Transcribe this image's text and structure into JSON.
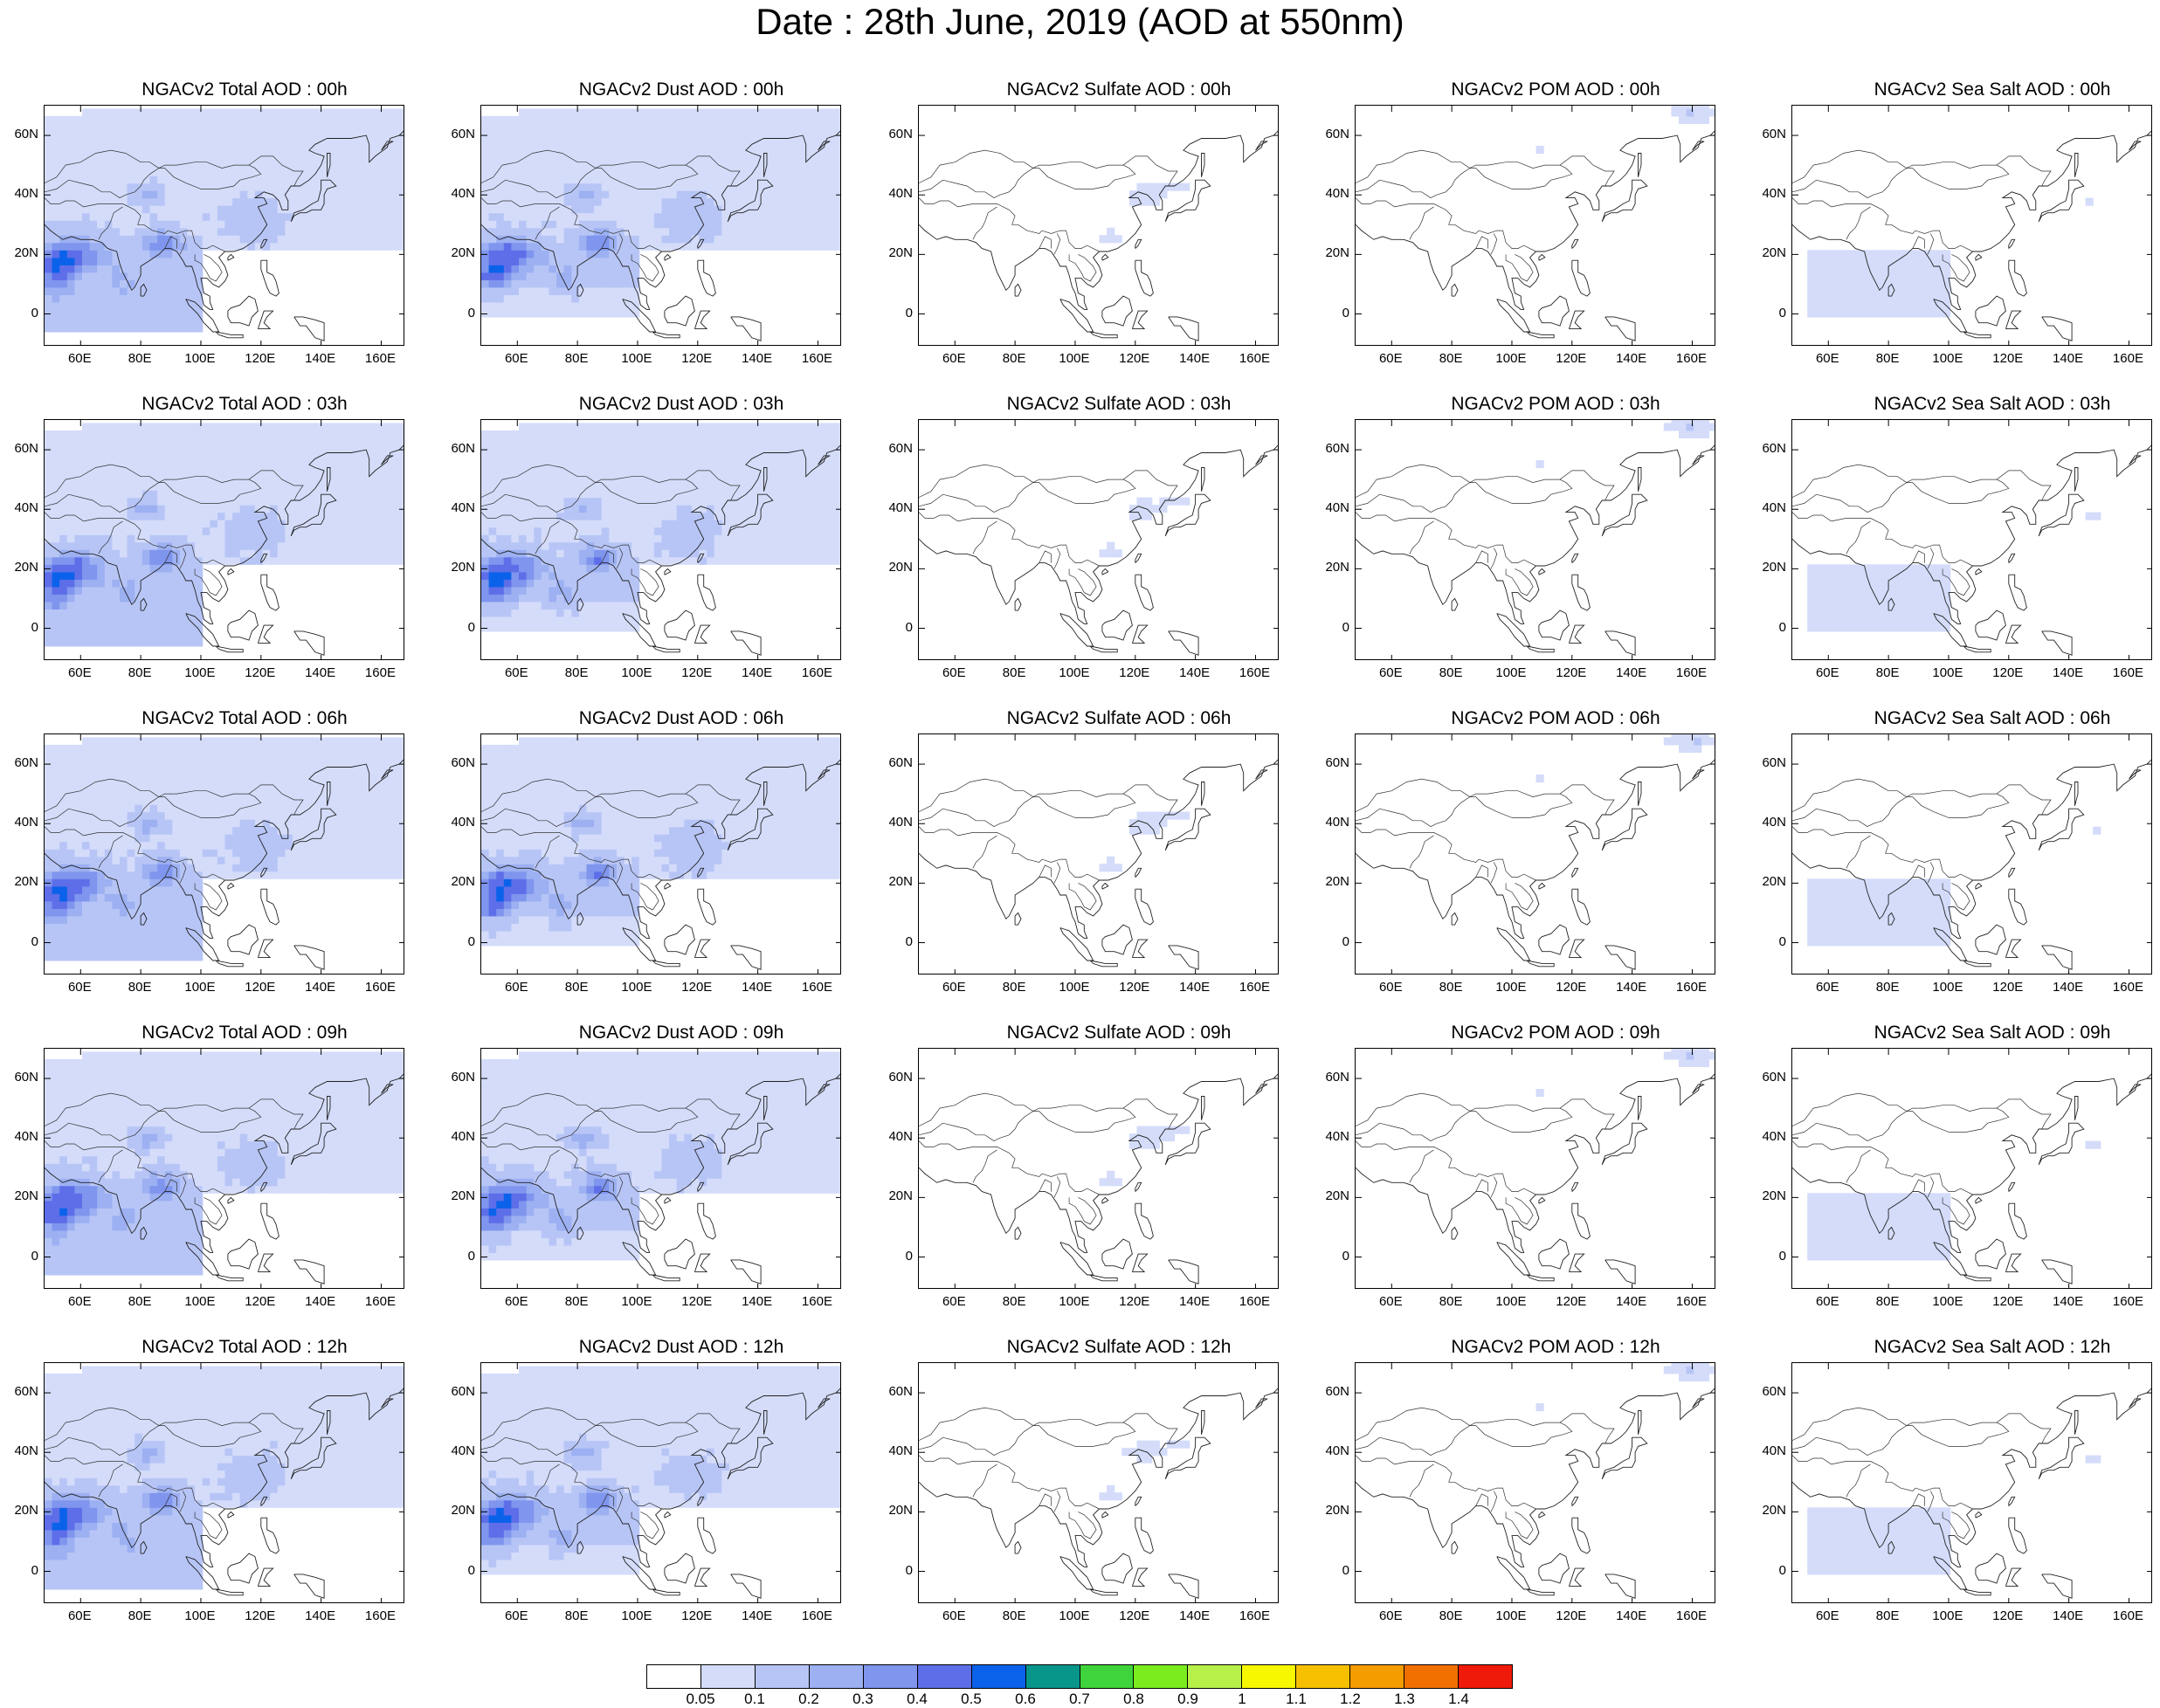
{
  "title": "Date : 28th June, 2019 (AOD at 550nm)",
  "map": {
    "lon_range": [
      48,
      168
    ],
    "lat_range": [
      -11,
      70
    ],
    "y_ticks": [
      "60N",
      "40N",
      "20N",
      "0"
    ],
    "x_ticks": [
      "60E",
      "80E",
      "100E",
      "120E",
      "140E",
      "160E"
    ]
  },
  "rows": [
    {
      "hour": "00h",
      "titles": [
        "NGACv2 Total AOD : 00h",
        "NGACv2 Dust AOD : 00h",
        "NGACv2 Sulfate AOD : 00h",
        "NGACv2 POM AOD : 00h",
        "NGACv2 Sea Salt AOD : 00h"
      ]
    },
    {
      "hour": "03h",
      "titles": [
        "NGACv2 Total AOD : 03h",
        "NGACv2 Dust AOD : 03h",
        "NGACv2 Sulfate AOD : 03h",
        "NGACv2 POM AOD : 03h",
        "NGACv2 Sea Salt AOD : 03h"
      ]
    },
    {
      "hour": "06h",
      "titles": [
        "NGACv2 Total AOD : 06h",
        "NGACv2 Dust AOD : 06h",
        "NGACv2 Sulfate AOD : 06h",
        "NGACv2 POM AOD : 06h",
        "NGACv2 Sea Salt AOD : 06h"
      ]
    },
    {
      "hour": "09h",
      "titles": [
        "NGACv2 Total AOD : 09h",
        "NGACv2 Dust AOD : 09h",
        "NGACv2 Sulfate AOD : 09h",
        "NGACv2 POM AOD : 09h",
        "NGACv2 Sea Salt  AOD : 09h"
      ]
    },
    {
      "hour": "12h",
      "titles": [
        "NGACv2 Total AOD  : 12h",
        "NGACv2 Dust AOD : 12h",
        "NGACv2 Sulfate AOD : 12h",
        "NGACv2 POM  AOD : 12h",
        "NGACv2 Sea Salt  AOD : 12h"
      ]
    }
  ],
  "colorbar": {
    "labels": [
      "0.05",
      "0.1",
      "0.2",
      "0.3",
      "0.4",
      "0.5",
      "0.6",
      "0.7",
      "0.8",
      "0.9",
      "1",
      "1.1",
      "1.2",
      "1.3",
      "1.4"
    ],
    "colors": [
      "#ffffff",
      "#d4dcfa",
      "#b7c5f6",
      "#9cb0f2",
      "#7f95ee",
      "#5d6ee8",
      "#0b62ea",
      "#08968b",
      "#3fd43b",
      "#7bec1e",
      "#b8f04a",
      "#f7f700",
      "#f6c000",
      "#f59c00",
      "#f27000",
      "#f01a0a"
    ]
  }
}
